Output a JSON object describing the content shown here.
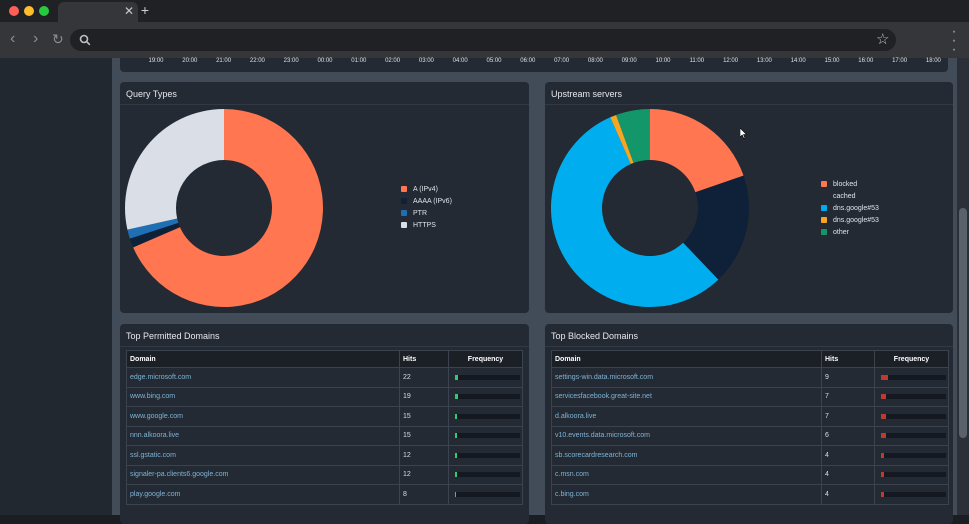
{
  "browser": {
    "window_controls": [
      {
        "name": "close-window-button",
        "color": "#ff5f57"
      },
      {
        "name": "minimize-window-button",
        "color": "#febc2e"
      },
      {
        "name": "zoom-window-button",
        "color": "#28c840"
      }
    ],
    "tab_close": "✕",
    "new_tab": "+",
    "back": "‹",
    "forward": "›",
    "reload": "↻",
    "url": "",
    "star": "☆"
  },
  "timeline": {
    "hours": [
      "19:00",
      "20:00",
      "21:00",
      "22:00",
      "23:00",
      "00:00",
      "01:00",
      "02:00",
      "03:00",
      "04:00",
      "05:00",
      "06:00",
      "07:00",
      "08:00",
      "09:00",
      "10:00",
      "11:00",
      "12:00",
      "13:00",
      "14:00",
      "15:00",
      "16:00",
      "17:00",
      "18:00"
    ]
  },
  "query_types": {
    "title": "Query Types",
    "slices": [
      {
        "label": "A (IPv4)",
        "value": 68.5,
        "color": "#ff7651"
      },
      {
        "label": "AAAA (IPv6)",
        "value": 1.5,
        "color": "#0e2138"
      },
      {
        "label": "PTR",
        "value": 1.5,
        "color": "#1f6fb5"
      },
      {
        "label": "HTTPS",
        "value": 28.5,
        "color": "#dadfe7"
      }
    ]
  },
  "upstream_servers": {
    "title": "Upstream servers",
    "slices": [
      {
        "label": "blocked",
        "value": 19.5,
        "color": "#ff7651"
      },
      {
        "label": "cached",
        "value": 18,
        "color": "#0e2138"
      },
      {
        "label": "dns.google#53",
        "value": 55,
        "color": "#00aef0"
      },
      {
        "label": "dns.google#53",
        "value": 1,
        "color": "#f6a623"
      },
      {
        "label": "other",
        "value": 5.5,
        "color": "#12966a"
      }
    ]
  },
  "top_permitted": {
    "title": "Top Permitted Domains",
    "headers": {
      "domain": "Domain",
      "hits": "Hits",
      "frequency": "Frequency"
    },
    "bar_color": "#2ecc71",
    "rows": [
      {
        "domain": "edge.microsoft.com",
        "hits": "22",
        "freq": 0.05
      },
      {
        "domain": "www.bing.com",
        "hits": "19",
        "freq": 0.04
      },
      {
        "domain": "www.google.com",
        "hits": "15",
        "freq": 0.035
      },
      {
        "domain": "nnn.alkoora.live",
        "hits": "15",
        "freq": 0.035
      },
      {
        "domain": "ssl.gstatic.com",
        "hits": "12",
        "freq": 0.03
      },
      {
        "domain": "signaler-pa.clients6.google.com",
        "hits": "12",
        "freq": 0.03
      },
      {
        "domain": "play.google.com",
        "hits": "8",
        "freq": 0.02
      }
    ]
  },
  "top_blocked": {
    "title": "Top Blocked Domains",
    "headers": {
      "domain": "Domain",
      "hits": "Hits",
      "frequency": "Frequency"
    },
    "bar_color": "#c0392b",
    "rows": [
      {
        "domain": "settings-win.data.microsoft.com",
        "hits": "9",
        "freq": 0.1
      },
      {
        "domain": "servicesfacebook.great-site.net",
        "hits": "7",
        "freq": 0.08
      },
      {
        "domain": "d.alkoora.live",
        "hits": "7",
        "freq": 0.08
      },
      {
        "domain": "v10.events.data.microsoft.com",
        "hits": "6",
        "freq": 0.07
      },
      {
        "domain": "sb.scorecardresearch.com",
        "hits": "4",
        "freq": 0.045
      },
      {
        "domain": "c.msn.com",
        "hits": "4",
        "freq": 0.045
      },
      {
        "domain": "c.bing.com",
        "hits": "4",
        "freq": 0.045
      }
    ]
  }
}
